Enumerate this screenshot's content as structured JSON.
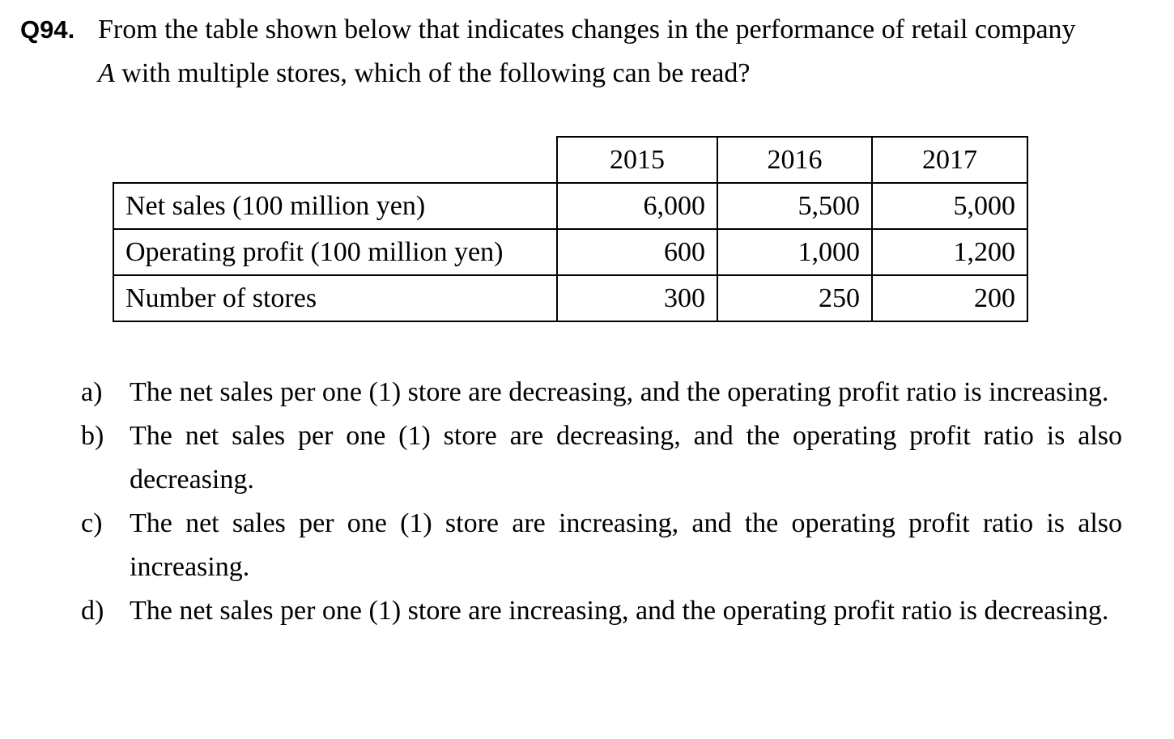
{
  "question": {
    "number": "Q94.",
    "line1": "From the table shown below that indicates changes in the performance of retail company",
    "line2_company": "A",
    "line2_rest": " with multiple stores, which of the following can be read?"
  },
  "table": {
    "headers": [
      "2015",
      "2016",
      "2017"
    ],
    "rows": [
      {
        "label": "Net sales (100 million yen)",
        "values": [
          "6,000",
          "5,500",
          "5,000"
        ]
      },
      {
        "label": "Operating profit (100 million yen)",
        "values": [
          "600",
          "1,000",
          "1,200"
        ]
      },
      {
        "label": "Number of stores",
        "values": [
          "300",
          "250",
          "200"
        ]
      }
    ]
  },
  "options": [
    {
      "letter": "a)",
      "text": "The net sales per one (1) store are decreasing, and the operating profit ratio is increasing."
    },
    {
      "letter": "b)",
      "text": "The net sales per one (1) store are decreasing, and the operating profit ratio is also decreasing."
    },
    {
      "letter": "c)",
      "text": "The net sales per one (1) store are increasing, and the operating profit ratio is also increasing."
    },
    {
      "letter": "d)",
      "text": "The net sales per one (1) store are increasing, and the operating profit ratio is decreasing."
    }
  ]
}
